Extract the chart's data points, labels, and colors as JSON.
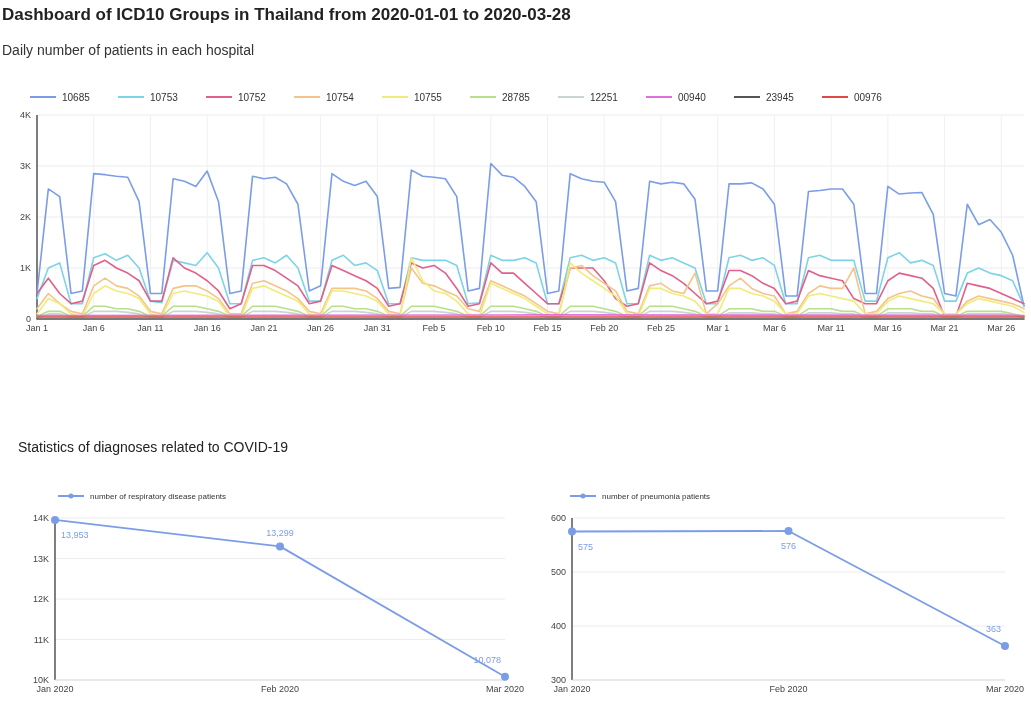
{
  "chart_data": [
    {
      "type": "line",
      "title": "Dashboard of ICD10 Groups in Thailand from 2020-01-01 to 2020-03-28",
      "subtitle": "Daily number of patients in each hospital",
      "x": [
        "2020-01-01",
        "2020-01-02",
        "2020-01-03",
        "2020-01-04",
        "2020-01-05",
        "2020-01-06",
        "2020-01-07",
        "2020-01-08",
        "2020-01-09",
        "2020-01-10",
        "2020-01-11",
        "2020-01-12",
        "2020-01-13",
        "2020-01-14",
        "2020-01-15",
        "2020-01-16",
        "2020-01-17",
        "2020-01-18",
        "2020-01-19",
        "2020-01-20",
        "2020-01-21",
        "2020-01-22",
        "2020-01-23",
        "2020-01-24",
        "2020-01-25",
        "2020-01-26",
        "2020-01-27",
        "2020-01-28",
        "2020-01-29",
        "2020-01-30",
        "2020-01-31",
        "2020-02-01",
        "2020-02-02",
        "2020-02-03",
        "2020-02-04",
        "2020-02-05",
        "2020-02-06",
        "2020-02-07",
        "2020-02-08",
        "2020-02-09",
        "2020-02-10",
        "2020-02-11",
        "2020-02-12",
        "2020-02-13",
        "2020-02-14",
        "2020-02-15",
        "2020-02-16",
        "2020-02-17",
        "2020-02-18",
        "2020-02-19",
        "2020-02-20",
        "2020-02-21",
        "2020-02-22",
        "2020-02-23",
        "2020-02-24",
        "2020-02-25",
        "2020-02-26",
        "2020-02-27",
        "2020-02-28",
        "2020-02-29",
        "2020-03-01",
        "2020-03-02",
        "2020-03-03",
        "2020-03-04",
        "2020-03-05",
        "2020-03-06",
        "2020-03-07",
        "2020-03-08",
        "2020-03-09",
        "2020-03-10",
        "2020-03-11",
        "2020-03-12",
        "2020-03-13",
        "2020-03-14",
        "2020-03-15",
        "2020-03-16",
        "2020-03-17",
        "2020-03-18",
        "2020-03-19",
        "2020-03-20",
        "2020-03-21",
        "2020-03-22",
        "2020-03-23",
        "2020-03-24",
        "2020-03-25",
        "2020-03-26",
        "2020-03-27",
        "2020-03-28"
      ],
      "xlim": [
        "2020-01-01",
        "2020-03-28"
      ],
      "xticks": [
        {
          "value": "2020-01-01",
          "label": "Jan 1"
        },
        {
          "value": "2020-01-06",
          "label": "Jan 6"
        },
        {
          "value": "2020-01-11",
          "label": "Jan 11"
        },
        {
          "value": "2020-01-16",
          "label": "Jan 16"
        },
        {
          "value": "2020-01-21",
          "label": "Jan 21"
        },
        {
          "value": "2020-01-26",
          "label": "Jan 26"
        },
        {
          "value": "2020-01-31",
          "label": "Jan 31"
        },
        {
          "value": "2020-02-05",
          "label": "Feb 5"
        },
        {
          "value": "2020-02-10",
          "label": "Feb 10"
        },
        {
          "value": "2020-02-15",
          "label": "Feb 15"
        },
        {
          "value": "2020-02-20",
          "label": "Feb 20"
        },
        {
          "value": "2020-02-25",
          "label": "Feb 25"
        },
        {
          "value": "2020-03-01",
          "label": "Mar 1"
        },
        {
          "value": "2020-03-06",
          "label": "Mar 6"
        },
        {
          "value": "2020-03-11",
          "label": "Mar 11"
        },
        {
          "value": "2020-03-16",
          "label": "Mar 16"
        },
        {
          "value": "2020-03-21",
          "label": "Mar 21"
        },
        {
          "value": "2020-03-26",
          "label": "Mar 26"
        }
      ],
      "ylim": [
        0,
        4000
      ],
      "yticks": [
        0,
        {
          "value": 1000,
          "label": "1K"
        },
        {
          "value": 2000,
          "label": "2K"
        },
        {
          "value": 3000,
          "label": "3K"
        },
        {
          "value": 4000,
          "label": "4K"
        }
      ],
      "grid": true,
      "legend": "top",
      "marker": "none",
      "line_style": "solid",
      "series": [
        {
          "name": "10685",
          "color": "#7b9de8",
          "values": [
            500,
            2550,
            2400,
            500,
            550,
            2850,
            2830,
            2800,
            2780,
            2300,
            500,
            500,
            2750,
            2700,
            2600,
            2900,
            2300,
            500,
            550,
            2800,
            2750,
            2780,
            2650,
            2250,
            550,
            650,
            2850,
            2700,
            2620,
            2700,
            2400,
            600,
            620,
            2920,
            2800,
            2780,
            2750,
            2400,
            550,
            600,
            3050,
            2820,
            2780,
            2600,
            2300,
            500,
            550,
            2850,
            2750,
            2700,
            2680,
            2300,
            550,
            600,
            2700,
            2650,
            2680,
            2650,
            2350,
            550,
            550,
            2650,
            2650,
            2670,
            2550,
            2250,
            450,
            450,
            2500,
            2520,
            2550,
            2550,
            2250,
            500,
            500,
            2600,
            2450,
            2470,
            2480,
            2050,
            500,
            450,
            2250,
            1850,
            1950,
            1700,
            1250,
            250
          ]
        },
        {
          "name": "10753",
          "color": "#7dd3e8",
          "values": [
            400,
            1000,
            1100,
            300,
            300,
            1200,
            1280,
            1150,
            1250,
            1000,
            350,
            320,
            1150,
            1100,
            1050,
            1300,
            1000,
            300,
            300,
            1150,
            1200,
            1100,
            1250,
            1000,
            350,
            350,
            1150,
            1250,
            1050,
            1100,
            950,
            300,
            300,
            1200,
            1150,
            1150,
            1150,
            1050,
            300,
            320,
            1250,
            1150,
            1150,
            1200,
            1100,
            300,
            300,
            1200,
            1250,
            1150,
            1200,
            1100,
            300,
            300,
            1250,
            1150,
            1200,
            1100,
            1000,
            300,
            300,
            1200,
            1250,
            1150,
            1200,
            1050,
            300,
            300,
            1200,
            1250,
            1150,
            1150,
            1150,
            350,
            350,
            1200,
            1300,
            1100,
            1150,
            1050,
            350,
            350,
            900,
            1000,
            900,
            850,
            750,
            250
          ]
        },
        {
          "name": "10752",
          "color": "#e0608a",
          "values": [
            500,
            800,
            500,
            300,
            350,
            1050,
            1150,
            1000,
            900,
            750,
            350,
            350,
            1200,
            1000,
            900,
            750,
            550,
            200,
            300,
            1050,
            1050,
            950,
            800,
            650,
            300,
            350,
            1050,
            950,
            850,
            750,
            600,
            250,
            300,
            1100,
            1000,
            1050,
            900,
            600,
            250,
            300,
            1100,
            900,
            900,
            700,
            500,
            300,
            300,
            1000,
            1000,
            1000,
            750,
            400,
            250,
            300,
            1100,
            950,
            850,
            700,
            500,
            300,
            350,
            950,
            950,
            850,
            700,
            600,
            300,
            350,
            950,
            850,
            800,
            750,
            400,
            300,
            300,
            750,
            900,
            850,
            800,
            600,
            50,
            50,
            700,
            650,
            600,
            500,
            400,
            300
          ]
        },
        {
          "name": "10754",
          "color": "#f5c48a",
          "values": [
            200,
            500,
            300,
            150,
            100,
            650,
            800,
            650,
            600,
            450,
            150,
            100,
            600,
            650,
            650,
            550,
            400,
            100,
            100,
            700,
            750,
            650,
            550,
            400,
            150,
            100,
            600,
            600,
            600,
            550,
            400,
            150,
            100,
            1000,
            700,
            650,
            550,
            450,
            200,
            150,
            750,
            650,
            550,
            450,
            300,
            150,
            100,
            1000,
            1050,
            850,
            700,
            550,
            150,
            100,
            650,
            700,
            550,
            500,
            900,
            100,
            300,
            650,
            800,
            600,
            500,
            450,
            100,
            150,
            500,
            650,
            600,
            600,
            1000,
            100,
            150,
            400,
            500,
            550,
            450,
            400,
            100,
            100,
            350,
            450,
            400,
            350,
            300,
            200
          ]
        },
        {
          "name": "10755",
          "color": "#f0ec7a",
          "values": [
            100,
            400,
            300,
            100,
            50,
            500,
            650,
            550,
            500,
            400,
            100,
            50,
            500,
            550,
            500,
            450,
            350,
            50,
            50,
            600,
            650,
            550,
            450,
            350,
            100,
            50,
            550,
            550,
            500,
            450,
            350,
            100,
            50,
            1200,
            750,
            550,
            500,
            350,
            100,
            50,
            700,
            600,
            500,
            400,
            250,
            100,
            50,
            1100,
            900,
            750,
            600,
            450,
            100,
            50,
            600,
            600,
            500,
            450,
            350,
            100,
            100,
            600,
            600,
            500,
            450,
            350,
            100,
            100,
            450,
            500,
            450,
            400,
            350,
            100,
            100,
            350,
            450,
            400,
            350,
            300,
            100,
            100,
            300,
            400,
            350,
            300,
            250,
            130
          ]
        },
        {
          "name": "28785",
          "color": "#b8e08a",
          "values": [
            50,
            150,
            150,
            50,
            50,
            250,
            250,
            200,
            200,
            150,
            50,
            50,
            250,
            250,
            250,
            200,
            150,
            50,
            50,
            250,
            250,
            250,
            200,
            150,
            50,
            50,
            250,
            250,
            200,
            200,
            150,
            50,
            50,
            250,
            250,
            250,
            200,
            150,
            50,
            50,
            250,
            250,
            250,
            200,
            150,
            50,
            50,
            250,
            250,
            250,
            200,
            150,
            50,
            50,
            250,
            250,
            250,
            200,
            150,
            50,
            50,
            200,
            200,
            200,
            150,
            150,
            50,
            50,
            200,
            200,
            200,
            150,
            150,
            50,
            50,
            200,
            200,
            200,
            150,
            150,
            50,
            50,
            150,
            150,
            150,
            150,
            100,
            50
          ]
        },
        {
          "name": "12251",
          "color": "#c9d6cf",
          "values": [
            30,
            100,
            100,
            30,
            30,
            150,
            150,
            150,
            130,
            100,
            30,
            30,
            150,
            150,
            150,
            130,
            100,
            30,
            30,
            150,
            150,
            150,
            130,
            100,
            30,
            30,
            150,
            150,
            150,
            130,
            100,
            30,
            30,
            150,
            150,
            150,
            130,
            100,
            30,
            30,
            150,
            150,
            150,
            130,
            100,
            30,
            30,
            150,
            150,
            150,
            130,
            100,
            30,
            30,
            150,
            150,
            150,
            130,
            100,
            30,
            30,
            120,
            120,
            120,
            100,
            100,
            30,
            30,
            120,
            120,
            120,
            100,
            100,
            30,
            30,
            120,
            120,
            120,
            100,
            100,
            30,
            30,
            100,
            100,
            100,
            100,
            80,
            30
          ]
        },
        {
          "name": "00940",
          "color": "#e070e0",
          "x": [
            "2020-01-01",
            "2020-02-14",
            "2020-03-28"
          ],
          "values": [
            70,
            80,
            70
          ]
        },
        {
          "name": "23945",
          "color": "#555555",
          "x": [
            "2020-01-01",
            "2020-02-14",
            "2020-03-28"
          ],
          "values": [
            0,
            0,
            0
          ]
        },
        {
          "name": "00976",
          "color": "#e04848",
          "x": [
            "2020-01-01",
            "2020-02-14",
            "2020-03-28"
          ],
          "values": [
            40,
            40,
            40
          ]
        }
      ]
    },
    {
      "type": "line",
      "title": "Statistics of diagnoses related to COVID-19",
      "categories": [
        "Jan 2020",
        "Feb 2020",
        "Mar 2020"
      ],
      "ylim": [
        10000,
        14000
      ],
      "yticks": [
        {
          "value": 10000,
          "label": "10K"
        },
        {
          "value": 11000,
          "label": "11K"
        },
        {
          "value": 12000,
          "label": "12K"
        },
        {
          "value": 13000,
          "label": "13K"
        },
        {
          "value": 14000,
          "label": "14K"
        }
      ],
      "grid": "y",
      "legend": "top left",
      "marker": "circle",
      "series": [
        {
          "name": "number of respiratory disease patients",
          "color": "#7b9de8",
          "values": [
            13953,
            13299,
            10078
          ],
          "value_labels": [
            "13,953",
            "13,299",
            "10,078"
          ]
        }
      ]
    },
    {
      "type": "line",
      "categories": [
        "Jan 2020",
        "Feb 2020",
        "Mar 2020"
      ],
      "ylim": [
        300,
        600
      ],
      "yticks": [
        300,
        400,
        500,
        600
      ],
      "grid": "y",
      "legend": "top left",
      "marker": "circle",
      "series": [
        {
          "name": "number of pneumonia patients",
          "color": "#7b9de8",
          "values": [
            575,
            576,
            363
          ],
          "value_labels": [
            "575",
            "576",
            "363"
          ]
        }
      ]
    }
  ]
}
